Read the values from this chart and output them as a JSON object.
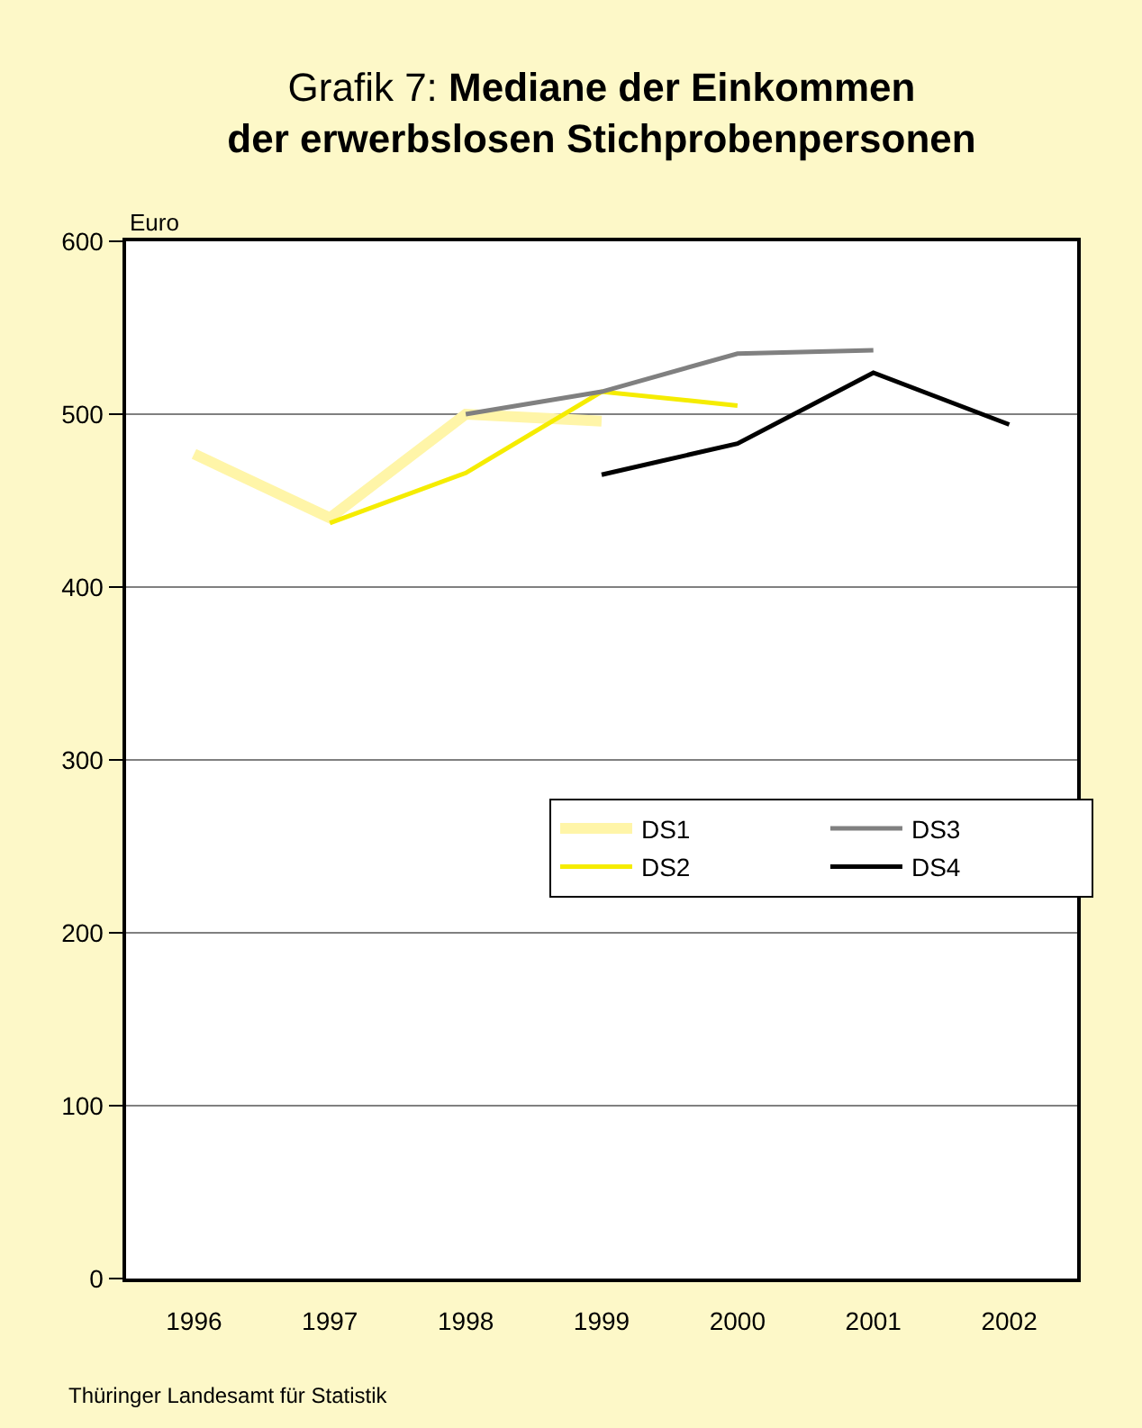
{
  "chart_data": {
    "type": "line",
    "title": "Grafik 7: Mediane der Einkommen\nder erwerbslosen Stichprobenpersonen",
    "ylabel": "Euro",
    "categories": [
      "1996",
      "1997",
      "1998",
      "1999",
      "2000",
      "2001",
      "2002"
    ],
    "series": [
      {
        "name": "DS1",
        "color": "#fff5a8",
        "values": [
          477,
          440,
          500,
          496,
          null,
          null,
          null
        ]
      },
      {
        "name": "DS2",
        "color": "#f5ec00",
        "values": [
          null,
          437,
          466,
          513,
          505,
          null,
          null
        ]
      },
      {
        "name": "DS3",
        "color": "#808080",
        "values": [
          null,
          null,
          500,
          513,
          535,
          537,
          null
        ]
      },
      {
        "name": "DS4",
        "color": "#000000",
        "values": [
          null,
          null,
          null,
          465,
          483,
          524,
          494
        ]
      }
    ],
    "ylim": [
      0,
      600
    ],
    "yticks": [
      0,
      100,
      200,
      300,
      400,
      500,
      600
    ],
    "grid": "y",
    "legend": "right",
    "marker": "none",
    "line_style": "solid",
    "annotations": [
      "Thüringer Landesamt für Statistik"
    ]
  }
}
